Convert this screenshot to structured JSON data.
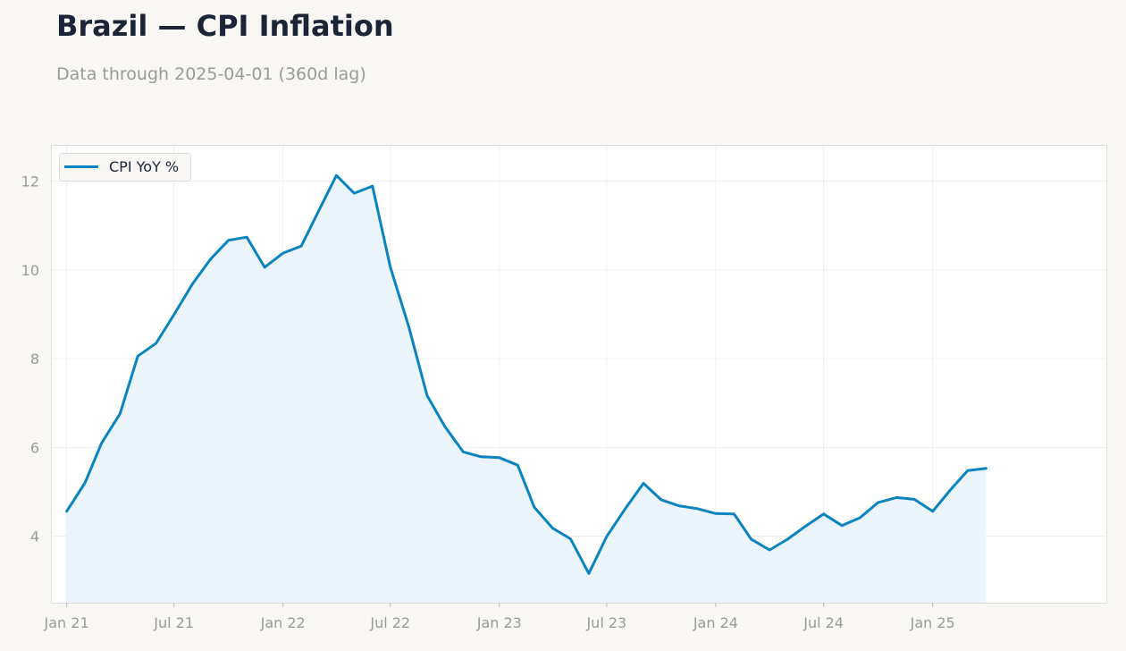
{
  "header": {
    "title": "Brazil — CPI Inflation",
    "subtitle": "Data through 2025-04-01 (360d lag)"
  },
  "colors": {
    "line": "#0a84c1",
    "fill": "#e9f3fa",
    "grid": "#ececec",
    "frame": "#dcdcdc",
    "plot_bg": "#ffffff",
    "page_bg": "#f8f7f4"
  },
  "chart_data": {
    "type": "area",
    "xlabel": "",
    "ylabel": "",
    "ylim": [
      2.5,
      12.8
    ],
    "xlim": [
      "2020-12-07",
      "2025-10-21"
    ],
    "yticks": [
      4,
      6,
      8,
      10,
      12
    ],
    "xticks": [
      {
        "date": "2021-01-01",
        "label": "Jan 21"
      },
      {
        "date": "2021-07-01",
        "label": "Jul 21"
      },
      {
        "date": "2022-01-01",
        "label": "Jan 22"
      },
      {
        "date": "2022-07-01",
        "label": "Jul 22"
      },
      {
        "date": "2023-01-01",
        "label": "Jan 23"
      },
      {
        "date": "2023-07-01",
        "label": "Jul 23"
      },
      {
        "date": "2024-01-01",
        "label": "Jan 24"
      },
      {
        "date": "2024-07-01",
        "label": "Jul 24"
      },
      {
        "date": "2025-01-01",
        "label": "Jan 25"
      }
    ],
    "grid": true,
    "legend_position": "top-left",
    "series": [
      {
        "name": "CPI YoY %",
        "x": [
          "2021-01-01",
          "2021-02-01",
          "2021-03-01",
          "2021-04-01",
          "2021-05-01",
          "2021-06-01",
          "2021-07-01",
          "2021-08-01",
          "2021-09-01",
          "2021-10-01",
          "2021-11-01",
          "2021-12-01",
          "2022-01-01",
          "2022-02-01",
          "2022-03-01",
          "2022-04-01",
          "2022-05-01",
          "2022-06-01",
          "2022-07-01",
          "2022-08-01",
          "2022-09-01",
          "2022-10-01",
          "2022-11-01",
          "2022-12-01",
          "2023-01-01",
          "2023-02-01",
          "2023-03-01",
          "2023-04-01",
          "2023-05-01",
          "2023-06-01",
          "2023-07-01",
          "2023-08-01",
          "2023-09-01",
          "2023-10-01",
          "2023-11-01",
          "2023-12-01",
          "2024-01-01",
          "2024-02-01",
          "2024-03-01",
          "2024-04-01",
          "2024-05-01",
          "2024-06-01",
          "2024-07-01",
          "2024-08-01",
          "2024-09-01",
          "2024-10-01",
          "2024-11-01",
          "2024-12-01",
          "2025-01-01",
          "2025-02-01",
          "2025-03-01",
          "2025-04-01"
        ],
        "values": [
          4.56,
          5.2,
          6.1,
          6.76,
          8.06,
          8.35,
          8.99,
          9.68,
          10.25,
          10.67,
          10.74,
          10.06,
          10.38,
          10.54,
          11.3,
          12.13,
          11.73,
          11.89,
          10.07,
          8.73,
          7.17,
          6.47,
          5.9,
          5.79,
          5.77,
          5.6,
          4.65,
          4.18,
          3.94,
          3.16,
          3.99,
          4.61,
          5.19,
          4.82,
          4.68,
          4.62,
          4.51,
          4.5,
          3.93,
          3.69,
          3.93,
          4.23,
          4.5,
          4.24,
          4.42,
          4.76,
          4.87,
          4.83,
          4.56,
          5.06,
          5.48,
          5.53
        ]
      }
    ]
  }
}
